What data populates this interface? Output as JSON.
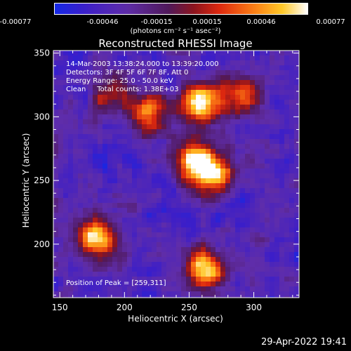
{
  "colorbar": {
    "ticks": [
      "-0.00077",
      "-0.00046",
      "-0.00015",
      "0.00015",
      "0.00046",
      "0.00077"
    ],
    "units": "(photons cm⁻² s⁻¹ asec⁻²)"
  },
  "annotations": {
    "time_range": "14-Mar-2003 13:38:24.000 to 13:39:20.000",
    "detectors": "Detectors: 3F 4F 5F 6F 7F 8F, Att 0",
    "energy_range": "Energy Range: 25.0 - 50.0 keV",
    "clean_counts": "Clean     Total counts: 1.38E+03",
    "peak_position": "Position of Peak = [259,311]"
  },
  "timestamp": "29-Apr-2022 19:41",
  "chart_data": {
    "type": "heatmap",
    "title": "Reconstructed RHESSI Image",
    "xlabel": "Heliocentric X (arcsec)",
    "ylabel": "Heliocentric Y (arcsec)",
    "xlim": [
      145,
      335
    ],
    "ylim": [
      158,
      352
    ],
    "xticks": [
      150,
      200,
      250,
      300
    ],
    "yticks": [
      200,
      250,
      300,
      350
    ],
    "colorbar_range": [
      -0.00077,
      0.00077
    ],
    "colormap": "rhessi-3color (blue-purple-red-orange-yellow-white)",
    "peak_position": [
      259,
      311
    ],
    "bright_sources": [
      {
        "x": 259,
        "y": 311,
        "relative_intensity": 1.0
      },
      {
        "x": 255,
        "y": 265,
        "relative_intensity": 0.95
      },
      {
        "x": 268,
        "y": 255,
        "relative_intensity": 0.85
      },
      {
        "x": 178,
        "y": 205,
        "relative_intensity": 0.9
      },
      {
        "x": 262,
        "y": 180,
        "relative_intensity": 0.9
      },
      {
        "x": 290,
        "y": 316,
        "relative_intensity": 0.7
      },
      {
        "x": 220,
        "y": 303,
        "relative_intensity": 0.7
      },
      {
        "x": 190,
        "y": 318,
        "relative_intensity": 0.55
      }
    ]
  }
}
